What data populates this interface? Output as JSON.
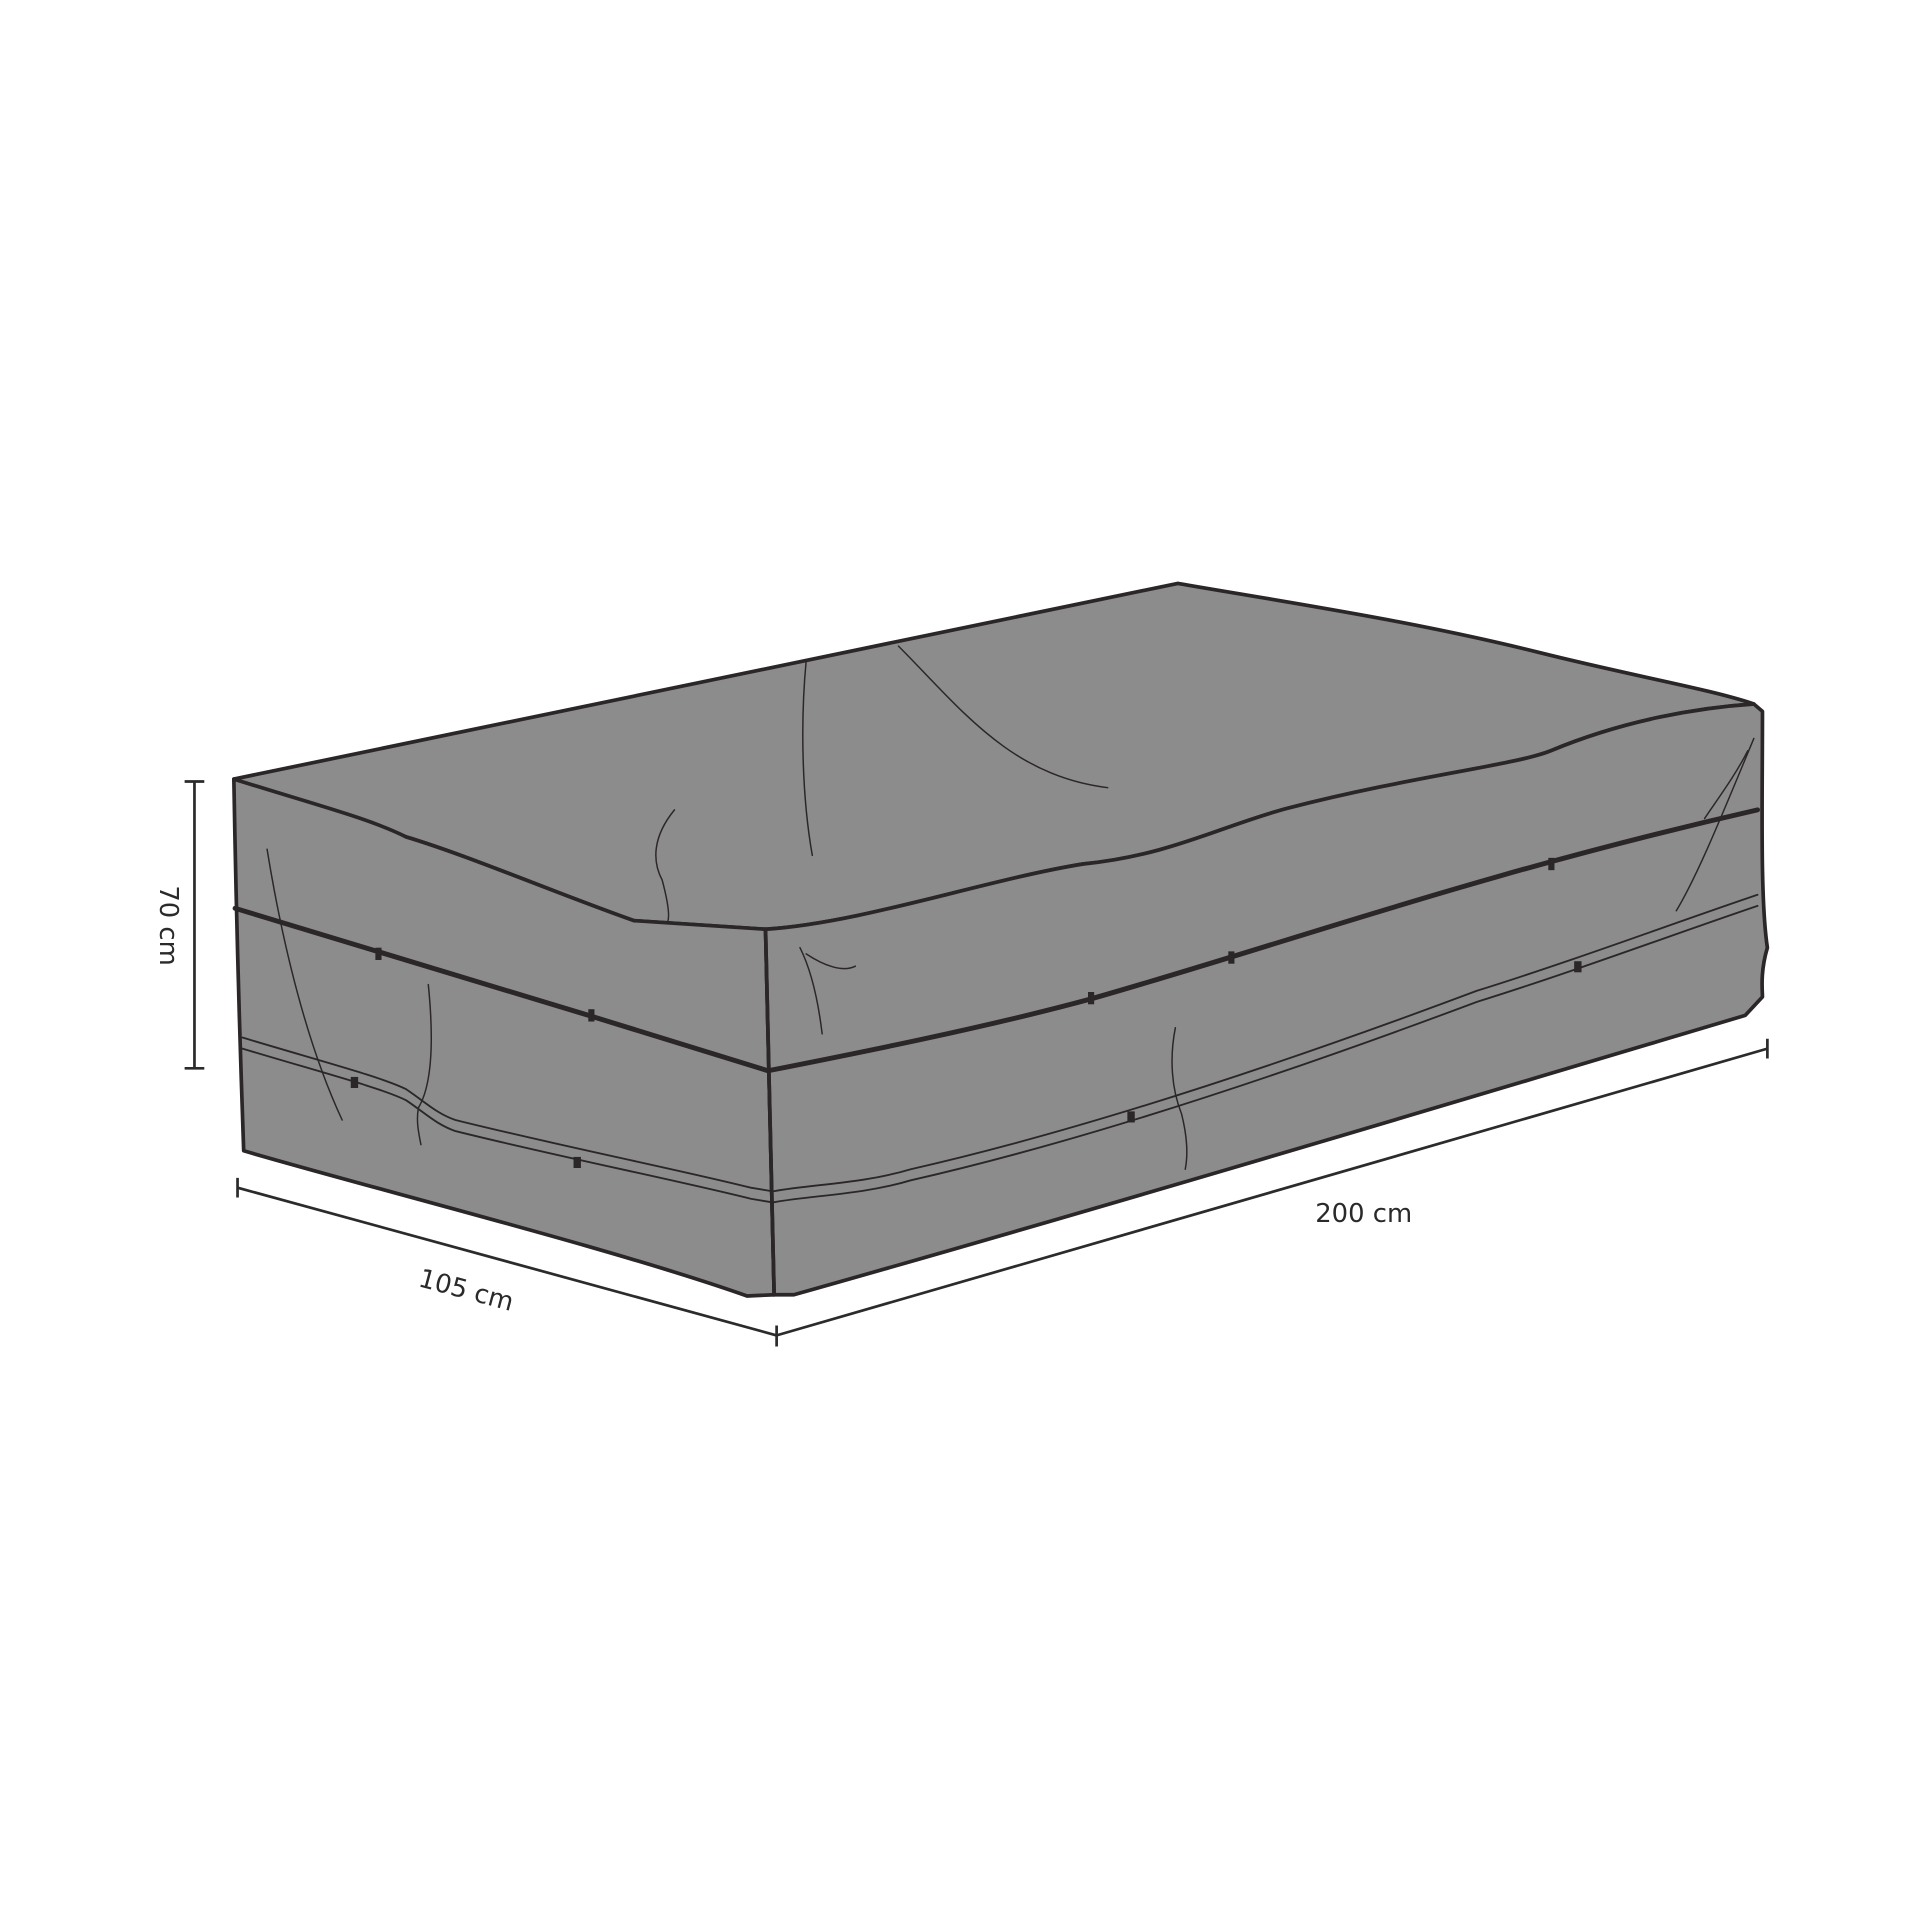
{
  "dimensions": {
    "height": "70 cm",
    "depth": "105 cm",
    "width": "200 cm"
  },
  "colors": {
    "cover_fill": "#8c8c8c",
    "outline": "#2b2628",
    "dimension_line": "#2b2b2b",
    "background": "#ffffff"
  }
}
